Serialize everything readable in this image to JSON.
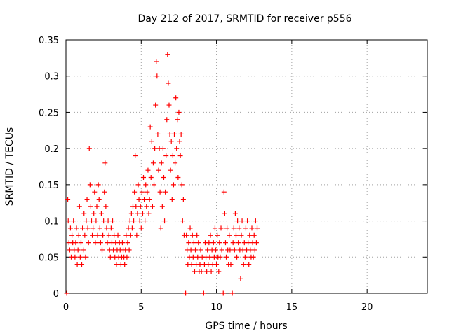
{
  "chart_data": {
    "type": "scatter",
    "title": "Day 212 of 2017, SRMTID for receiver p556",
    "xlabel": "GPS time / hours",
    "ylabel": "SRMTID / TECUs",
    "xlim": [
      0,
      24
    ],
    "ylim": [
      0,
      0.35
    ],
    "xticks": [
      0,
      5,
      10,
      15,
      20
    ],
    "xtick_labels": [
      "0",
      "5",
      "10",
      "15",
      "20"
    ],
    "yticks": [
      0,
      0.05,
      0.1,
      0.15,
      0.2,
      0.25,
      0.3,
      0.35
    ],
    "ytick_labels": [
      "0",
      "0.05",
      "0.1",
      "0.15",
      "0.2",
      "0.25",
      "0.3",
      "0.35"
    ],
    "grid": true,
    "marker": "+",
    "series_color": "#ff0000",
    "series": [
      {
        "name": "SRMTID",
        "points": [
          [
            0.05,
            0.0
          ],
          [
            0.12,
            0.13
          ],
          [
            0.15,
            0.1
          ],
          [
            0.2,
            0.07
          ],
          [
            0.25,
            0.06
          ],
          [
            0.3,
            0.09
          ],
          [
            0.35,
            0.05
          ],
          [
            0.4,
            0.08
          ],
          [
            0.45,
            0.07
          ],
          [
            0.5,
            0.1
          ],
          [
            0.55,
            0.06
          ],
          [
            0.6,
            0.05
          ],
          [
            0.65,
            0.07
          ],
          [
            0.7,
            0.09
          ],
          [
            0.75,
            0.04
          ],
          [
            0.8,
            0.06
          ],
          [
            0.85,
            0.08
          ],
          [
            0.9,
            0.12
          ],
          [
            0.95,
            0.05
          ],
          [
            1.0,
            0.07
          ],
          [
            1.05,
            0.04
          ],
          [
            1.1,
            0.09
          ],
          [
            1.15,
            0.06
          ],
          [
            1.2,
            0.11
          ],
          [
            1.25,
            0.08
          ],
          [
            1.3,
            0.05
          ],
          [
            1.35,
            0.1
          ],
          [
            1.4,
            0.13
          ],
          [
            1.45,
            0.09
          ],
          [
            1.5,
            0.07
          ],
          [
            1.55,
            0.2
          ],
          [
            1.6,
            0.15
          ],
          [
            1.65,
            0.12
          ],
          [
            1.7,
            0.1
          ],
          [
            1.75,
            0.08
          ],
          [
            1.8,
            0.09
          ],
          [
            1.85,
            0.11
          ],
          [
            1.9,
            0.14
          ],
          [
            1.95,
            0.07
          ],
          [
            2.0,
            0.1
          ],
          [
            2.05,
            0.12
          ],
          [
            2.1,
            0.08
          ],
          [
            2.15,
            0.15
          ],
          [
            2.2,
            0.13
          ],
          [
            2.25,
            0.09
          ],
          [
            2.3,
            0.07
          ],
          [
            2.35,
            0.11
          ],
          [
            2.4,
            0.06
          ],
          [
            2.45,
            0.08
          ],
          [
            2.5,
            0.1
          ],
          [
            2.55,
            0.14
          ],
          [
            2.6,
            0.18
          ],
          [
            2.65,
            0.12
          ],
          [
            2.7,
            0.09
          ],
          [
            2.75,
            0.07
          ],
          [
            2.8,
            0.1
          ],
          [
            2.85,
            0.08
          ],
          [
            2.9,
            0.06
          ],
          [
            2.95,
            0.05
          ],
          [
            3.0,
            0.09
          ],
          [
            3.05,
            0.07
          ],
          [
            3.1,
            0.1
          ],
          [
            3.15,
            0.06
          ],
          [
            3.2,
            0.08
          ],
          [
            3.25,
            0.05
          ],
          [
            3.3,
            0.07
          ],
          [
            3.35,
            0.04
          ],
          [
            3.4,
            0.06
          ],
          [
            3.45,
            0.08
          ],
          [
            3.5,
            0.05
          ],
          [
            3.55,
            0.07
          ],
          [
            3.6,
            0.06
          ],
          [
            3.65,
            0.04
          ],
          [
            3.7,
            0.05
          ],
          [
            3.75,
            0.07
          ],
          [
            3.8,
            0.06
          ],
          [
            3.85,
            0.05
          ],
          [
            3.9,
            0.04
          ],
          [
            3.95,
            0.06
          ],
          [
            4.0,
            0.08
          ],
          [
            4.05,
            0.05
          ],
          [
            4.1,
            0.07
          ],
          [
            4.15,
            0.09
          ],
          [
            4.2,
            0.06
          ],
          [
            4.25,
            0.1
          ],
          [
            4.3,
            0.08
          ],
          [
            4.35,
            0.11
          ],
          [
            4.4,
            0.09
          ],
          [
            4.45,
            0.12
          ],
          [
            4.5,
            0.1
          ],
          [
            4.55,
            0.14
          ],
          [
            4.6,
            0.19
          ],
          [
            4.65,
            0.12
          ],
          [
            4.7,
            0.08
          ],
          [
            4.75,
            0.11
          ],
          [
            4.8,
            0.15
          ],
          [
            4.85,
            0.13
          ],
          [
            4.9,
            0.1
          ],
          [
            4.95,
            0.12
          ],
          [
            5.0,
            0.09
          ],
          [
            5.05,
            0.14
          ],
          [
            5.1,
            0.11
          ],
          [
            5.15,
            0.16
          ],
          [
            5.2,
            0.13
          ],
          [
            5.25,
            0.1
          ],
          [
            5.3,
            0.15
          ],
          [
            5.35,
            0.12
          ],
          [
            5.4,
            0.14
          ],
          [
            5.45,
            0.17
          ],
          [
            5.5,
            0.11
          ],
          [
            5.55,
            0.13
          ],
          [
            5.6,
            0.23
          ],
          [
            5.65,
            0.16
          ],
          [
            5.7,
            0.21
          ],
          [
            5.75,
            0.12
          ],
          [
            5.8,
            0.18
          ],
          [
            5.85,
            0.15
          ],
          [
            5.9,
            0.2
          ],
          [
            5.95,
            0.26
          ],
          [
            6.0,
            0.32
          ],
          [
            6.05,
            0.3
          ],
          [
            6.1,
            0.22
          ],
          [
            6.15,
            0.17
          ],
          [
            6.2,
            0.2
          ],
          [
            6.25,
            0.14
          ],
          [
            6.3,
            0.09
          ],
          [
            6.35,
            0.18
          ],
          [
            6.4,
            0.12
          ],
          [
            6.45,
            0.2
          ],
          [
            6.5,
            0.16
          ],
          [
            6.55,
            0.1
          ],
          [
            6.6,
            0.14
          ],
          [
            6.65,
            0.19
          ],
          [
            6.7,
            0.24
          ],
          [
            6.75,
            0.33
          ],
          [
            6.8,
            0.29
          ],
          [
            6.85,
            0.26
          ],
          [
            6.9,
            0.22
          ],
          [
            6.95,
            0.17
          ],
          [
            7.0,
            0.21
          ],
          [
            7.05,
            0.13
          ],
          [
            7.1,
            0.19
          ],
          [
            7.15,
            0.15
          ],
          [
            7.2,
            0.22
          ],
          [
            7.25,
            0.18
          ],
          [
            7.3,
            0.27
          ],
          [
            7.35,
            0.2
          ],
          [
            7.4,
            0.24
          ],
          [
            7.45,
            0.16
          ],
          [
            7.5,
            0.25
          ],
          [
            7.55,
            0.21
          ],
          [
            7.6,
            0.19
          ],
          [
            7.65,
            0.22
          ],
          [
            7.7,
            0.15
          ],
          [
            7.75,
            0.1
          ],
          [
            7.8,
            0.13
          ],
          [
            7.85,
            0.08
          ],
          [
            7.95,
            0.0
          ],
          [
            8.0,
            0.08
          ],
          [
            8.05,
            0.06
          ],
          [
            8.1,
            0.04
          ],
          [
            8.15,
            0.07
          ],
          [
            8.2,
            0.05
          ],
          [
            8.25,
            0.09
          ],
          [
            8.3,
            0.06
          ],
          [
            8.35,
            0.04
          ],
          [
            8.4,
            0.08
          ],
          [
            8.45,
            0.05
          ],
          [
            8.5,
            0.07
          ],
          [
            8.55,
            0.03
          ],
          [
            8.6,
            0.06
          ],
          [
            8.65,
            0.04
          ],
          [
            8.7,
            0.08
          ],
          [
            8.75,
            0.05
          ],
          [
            8.8,
            0.07
          ],
          [
            8.85,
            0.03
          ],
          [
            8.9,
            0.04
          ],
          [
            8.95,
            0.06
          ],
          [
            9.0,
            0.03
          ],
          [
            9.05,
            0.05
          ],
          [
            9.15,
            0.0
          ],
          [
            9.2,
            0.04
          ],
          [
            9.25,
            0.07
          ],
          [
            9.3,
            0.05
          ],
          [
            9.35,
            0.03
          ],
          [
            9.4,
            0.06
          ],
          [
            9.45,
            0.04
          ],
          [
            9.5,
            0.07
          ],
          [
            9.55,
            0.05
          ],
          [
            9.6,
            0.08
          ],
          [
            9.65,
            0.03
          ],
          [
            9.7,
            0.06
          ],
          [
            9.75,
            0.04
          ],
          [
            9.8,
            0.07
          ],
          [
            9.85,
            0.05
          ],
          [
            9.9,
            0.09
          ],
          [
            9.95,
            0.06
          ],
          [
            10.0,
            0.04
          ],
          [
            10.05,
            0.08
          ],
          [
            10.1,
            0.05
          ],
          [
            10.15,
            0.03
          ],
          [
            10.2,
            0.07
          ],
          [
            10.25,
            0.05
          ],
          [
            10.3,
            0.09
          ],
          [
            10.35,
            0.06
          ],
          [
            10.45,
            0.0
          ],
          [
            10.5,
            0.14
          ],
          [
            10.55,
            0.11
          ],
          [
            10.6,
            0.07
          ],
          [
            10.65,
            0.05
          ],
          [
            10.7,
            0.09
          ],
          [
            10.75,
            0.06
          ],
          [
            10.8,
            0.04
          ],
          [
            10.85,
            0.08
          ],
          [
            10.9,
            0.06
          ],
          [
            10.95,
            0.04
          ],
          [
            11.05,
            0.0
          ],
          [
            11.1,
            0.07
          ],
          [
            11.15,
            0.09
          ],
          [
            11.2,
            0.06
          ],
          [
            11.25,
            0.11
          ],
          [
            11.3,
            0.08
          ],
          [
            11.35,
            0.05
          ],
          [
            11.4,
            0.1
          ],
          [
            11.45,
            0.07
          ],
          [
            11.5,
            0.09
          ],
          [
            11.55,
            0.06
          ],
          [
            11.6,
            0.02
          ],
          [
            11.65,
            0.08
          ],
          [
            11.7,
            0.1
          ],
          [
            11.75,
            0.06
          ],
          [
            11.8,
            0.04
          ],
          [
            11.85,
            0.07
          ],
          [
            11.9,
            0.05
          ],
          [
            11.95,
            0.09
          ],
          [
            12.0,
            0.06
          ],
          [
            12.05,
            0.1
          ],
          [
            12.1,
            0.07
          ],
          [
            12.15,
            0.04
          ],
          [
            12.2,
            0.08
          ],
          [
            12.25,
            0.06
          ],
          [
            12.3,
            0.05
          ],
          [
            12.35,
            0.09
          ],
          [
            12.4,
            0.07
          ],
          [
            12.45,
            0.05
          ],
          [
            12.5,
            0.08
          ],
          [
            12.55,
            0.06
          ],
          [
            12.6,
            0.1
          ],
          [
            12.65,
            0.07
          ],
          [
            12.7,
            0.09
          ]
        ]
      }
    ]
  }
}
